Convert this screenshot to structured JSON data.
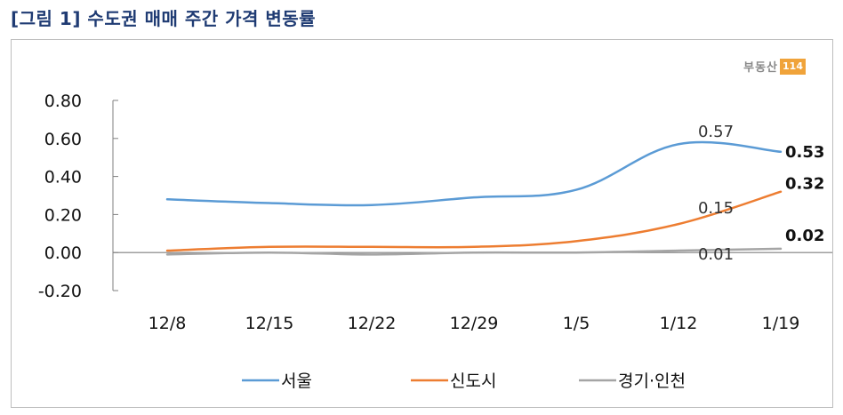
{
  "title": "[그림 1] 수도권 매매 주간 가격 변동률",
  "logo": {
    "text": "부동산",
    "badge": "114"
  },
  "chart_data": {
    "type": "line",
    "categories": [
      "12/8",
      "12/15",
      "12/22",
      "12/29",
      "1/5",
      "1/12",
      "1/19"
    ],
    "y_ticks": [
      "0.80",
      "0.60",
      "0.40",
      "0.20",
      "0.00",
      "-0.20"
    ],
    "ylim": [
      -0.2,
      0.8
    ],
    "grid": false,
    "legend_position": "bottom",
    "series": [
      {
        "name": "서울",
        "color": "#5b9bd5",
        "values": [
          0.28,
          0.26,
          0.25,
          0.29,
          0.33,
          0.57,
          0.53
        ],
        "labels": [
          {
            "index": 5,
            "text": "0.57",
            "bold": false
          },
          {
            "index": 6,
            "text": "0.53",
            "bold": true
          }
        ]
      },
      {
        "name": "신도시",
        "color": "#ed7d31",
        "values": [
          0.01,
          0.03,
          0.03,
          0.03,
          0.06,
          0.15,
          0.32
        ],
        "labels": [
          {
            "index": 5,
            "text": "0.15",
            "bold": false
          },
          {
            "index": 6,
            "text": "0.32",
            "bold": true
          }
        ]
      },
      {
        "name": "경기·인천",
        "color": "#a5a5a5",
        "values": [
          -0.01,
          0.0,
          -0.01,
          0.0,
          0.0,
          0.01,
          0.02
        ],
        "labels": [
          {
            "index": 5,
            "text": "0.01",
            "bold": false
          },
          {
            "index": 6,
            "text": "0.02",
            "bold": true
          }
        ]
      }
    ]
  }
}
